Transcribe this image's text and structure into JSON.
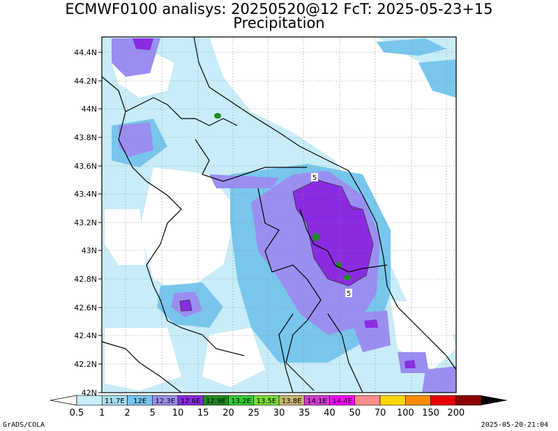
{
  "title": {
    "line1": "ECMWF0100 analisys: 20250520@12 FcT: 2025-05-23+15",
    "line2": "Precipitation"
  },
  "map": {
    "lat_labels": [
      "44.4N",
      "44.2N",
      "44N",
      "43.8N",
      "43.6N",
      "43.4N",
      "43.2N",
      "43N",
      "42.8N",
      "42.6N",
      "42.4N",
      "42.2N",
      "42N"
    ],
    "contour_labels": [
      "5",
      "5"
    ]
  },
  "colorbar": {
    "levels": [
      "0.5",
      "1",
      "2",
      "5",
      "10",
      "15",
      "20",
      "25",
      "30",
      "35",
      "40",
      "50",
      "70",
      "100",
      "150",
      "200"
    ],
    "lon_labels": [
      "11.7E",
      "12E",
      "12.3E",
      "12.6E",
      "12.9E",
      "13.2E",
      "13.5E",
      "13.8E",
      "14.1E",
      "14.4E"
    ],
    "colors": [
      "#c8ecf8",
      "#a8dcf0",
      "#78c6ec",
      "#9a8ef0",
      "#8a2be2",
      "#1e8c1e",
      "#32cd32",
      "#7cdc3c",
      "#c8b46e",
      "#d23cd2",
      "#ff00ff",
      "#fa8c8c",
      "#ffd700",
      "#ff8c00",
      "#e60000",
      "#8b0000"
    ]
  },
  "footer": {
    "left": "GrADS/COLA",
    "right": "2025-05-20-21:04"
  }
}
